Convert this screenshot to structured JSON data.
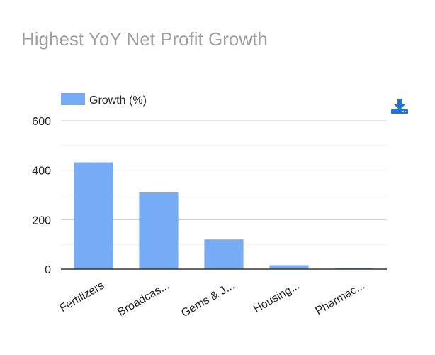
{
  "title": "Highest YoY Net Profit Growth",
  "download": {
    "icon": "download-icon",
    "color": "#1976d2"
  },
  "chart_data": {
    "type": "bar",
    "categories": [
      "Fertilizers",
      "Broadcas...",
      "Gems & J...",
      "Housing...",
      "Pharmac..."
    ],
    "series": [
      {
        "name": "Growth (%)",
        "values": [
          432,
          310,
          120,
          16,
          5
        ],
        "color": "#76abf5"
      }
    ],
    "ylim": [
      0,
      600
    ],
    "yticks": [
      0,
      200,
      400,
      600
    ],
    "minor_grid": [
      100,
      300,
      500
    ],
    "grid": true,
    "legend": "top-left"
  }
}
